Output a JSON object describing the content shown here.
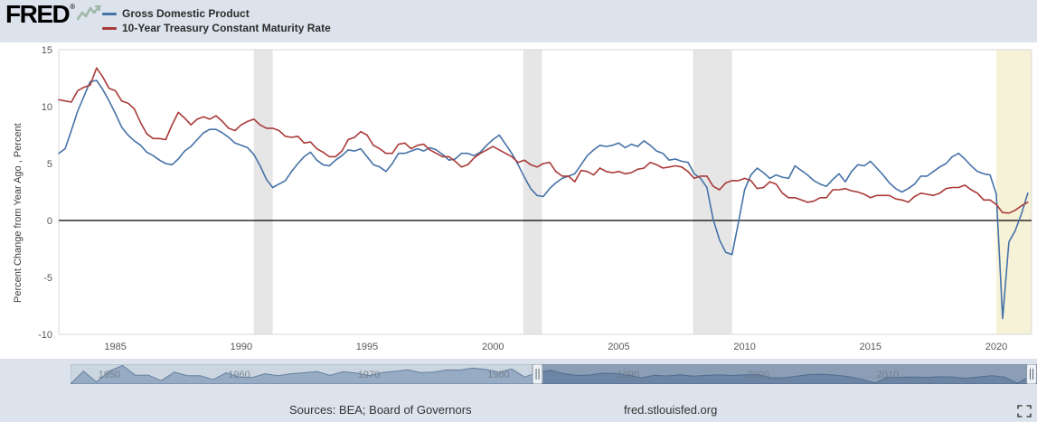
{
  "header": {
    "logo_text": "FRED",
    "logo_reg": "®",
    "legend": [
      {
        "label": "Gross Domestic Product",
        "color": "#4572a7"
      },
      {
        "label": "10-Year Treasury Constant Maturity Rate",
        "color": "#a93a38"
      }
    ]
  },
  "chart_data": {
    "type": "line",
    "title": "",
    "xlabel": "",
    "ylabel": "Percent Change from Year Ago , Percent",
    "x_range": [
      1982.75,
      2021.4
    ],
    "ylim": [
      -10,
      15
    ],
    "y_ticks": [
      15,
      10,
      5,
      0,
      -5,
      -10
    ],
    "x_ticks": [
      1985,
      1990,
      1995,
      2000,
      2005,
      2010,
      2015,
      2020
    ],
    "zero_line": 0,
    "grid": false,
    "legend_position": "top-left",
    "recession_color": "#e6e6e6",
    "recession_bands": [
      [
        1990.5,
        1991.25
      ],
      [
        2001.2,
        2001.95
      ],
      [
        2007.95,
        2009.5
      ]
    ],
    "highlight_band": [
      2020.0,
      2021.4
    ],
    "highlight_color": "#f6f2d8",
    "series": [
      {
        "name": "Gross Domestic Product",
        "color": "#4572a7",
        "x_start": 1982.75,
        "x_step": 0.25,
        "values": [
          5.9,
          6.3,
          7.9,
          9.6,
          10.9,
          12.2,
          12.3,
          11.5,
          10.5,
          9.4,
          8.2,
          7.5,
          7.0,
          6.6,
          6.0,
          5.7,
          5.3,
          5.0,
          4.9,
          5.4,
          6.1,
          6.5,
          7.1,
          7.7,
          8.0,
          8.0,
          7.7,
          7.3,
          6.8,
          6.6,
          6.4,
          5.8,
          4.8,
          3.6,
          2.9,
          3.2,
          3.5,
          4.3,
          5.0,
          5.6,
          6.0,
          5.3,
          4.9,
          4.8,
          5.3,
          5.7,
          6.2,
          6.1,
          6.3,
          5.6,
          4.9,
          4.7,
          4.3,
          5.0,
          5.9,
          5.9,
          6.1,
          6.3,
          6.1,
          6.4,
          6.2,
          5.8,
          5.3,
          5.4,
          5.9,
          5.9,
          5.7,
          6.0,
          6.6,
          7.1,
          7.5,
          6.7,
          5.9,
          4.9,
          3.8,
          2.8,
          2.2,
          2.1,
          2.8,
          3.3,
          3.7,
          3.9,
          4.1,
          4.9,
          5.7,
          6.2,
          6.6,
          6.5,
          6.6,
          6.8,
          6.4,
          6.7,
          6.5,
          7.0,
          6.6,
          6.1,
          5.9,
          5.3,
          5.4,
          5.2,
          5.1,
          4.1,
          3.7,
          2.9,
          0.1,
          -1.7,
          -2.8,
          -3.0,
          -0.2,
          2.7,
          4.0,
          4.6,
          4.2,
          3.7,
          4.0,
          3.8,
          3.7,
          4.8,
          4.4,
          4.0,
          3.5,
          3.2,
          3.0,
          3.6,
          4.1,
          3.4,
          4.3,
          4.9,
          4.8,
          5.2,
          4.6,
          4.0,
          3.3,
          2.8,
          2.5,
          2.8,
          3.2,
          3.9,
          3.9,
          4.3,
          4.7,
          5.0,
          5.6,
          5.9,
          5.4,
          4.8,
          4.3,
          4.1,
          4.0,
          2.3,
          -8.6,
          -1.9,
          -0.9,
          0.6,
          2.4
        ]
      },
      {
        "name": "10-Year Treasury Constant Maturity Rate",
        "color": "#a93a38",
        "x_start": 1982.75,
        "x_step": 0.25,
        "values": [
          10.6,
          10.5,
          10.4,
          11.4,
          11.7,
          11.9,
          13.4,
          12.6,
          11.6,
          11.4,
          10.5,
          10.3,
          9.8,
          8.6,
          7.6,
          7.2,
          7.2,
          7.1,
          8.4,
          9.5,
          9.0,
          8.4,
          8.9,
          9.1,
          8.9,
          9.2,
          8.7,
          8.1,
          7.9,
          8.4,
          8.7,
          8.9,
          8.4,
          8.1,
          8.1,
          7.9,
          7.4,
          7.3,
          7.4,
          6.8,
          6.9,
          6.3,
          6.0,
          5.6,
          5.6,
          6.1,
          7.1,
          7.3,
          7.8,
          7.5,
          6.6,
          6.3,
          5.9,
          5.9,
          6.7,
          6.8,
          6.3,
          6.6,
          6.7,
          6.2,
          5.9,
          5.6,
          5.6,
          5.2,
          4.7,
          4.9,
          5.5,
          5.9,
          6.2,
          6.5,
          6.2,
          5.9,
          5.6,
          5.1,
          5.3,
          4.9,
          4.7,
          5.0,
          5.1,
          4.3,
          3.9,
          3.9,
          3.4,
          4.4,
          4.3,
          4.0,
          4.6,
          4.3,
          4.2,
          4.3,
          4.1,
          4.2,
          4.5,
          4.6,
          5.1,
          4.9,
          4.6,
          4.7,
          4.8,
          4.7,
          4.3,
          3.7,
          3.9,
          3.9,
          3.0,
          2.7,
          3.3,
          3.5,
          3.5,
          3.7,
          3.5,
          2.8,
          2.9,
          3.4,
          3.2,
          2.4,
          2.0,
          2.0,
          1.8,
          1.6,
          1.7,
          2.0,
          2.0,
          2.7,
          2.7,
          2.8,
          2.6,
          2.5,
          2.3,
          2.0,
          2.2,
          2.2,
          2.2,
          1.9,
          1.8,
          1.6,
          2.1,
          2.4,
          2.3,
          2.2,
          2.4,
          2.8,
          2.9,
          2.9,
          3.1,
          2.7,
          2.4,
          1.8,
          1.8,
          1.4,
          0.7,
          0.65,
          0.9,
          1.3,
          1.6
        ]
      }
    ]
  },
  "slider": {
    "x_range": [
      1947,
      2021.5
    ],
    "labels": [
      1950,
      1960,
      1970,
      1980,
      1990,
      2000,
      2010
    ],
    "selection": [
      1983,
      2021.5
    ],
    "area": {
      "x_start": 1948,
      "x_step": 1,
      "values": [
        10,
        -1,
        10,
        15.7,
        5.9,
        6.0,
        0.4,
        9.0,
        5.5,
        5.5,
        1.5,
        8.4,
        4.0,
        3.6,
        7.4,
        5.5,
        7.4,
        8.4,
        9.6,
        5.7,
        9.4,
        8.2,
        5.5,
        8.5,
        9.8,
        11.4,
        8.5,
        9.0,
        11.2,
        11.1,
        13.0,
        11.7,
        8.8,
        12.2,
        4.1,
        8.6,
        11.0,
        7.6,
        5.6,
        6.1,
        7.9,
        7.7,
        5.8,
        3.3,
        5.9,
        5.2,
        6.3,
        4.9,
        5.7,
        6.3,
        5.6,
        6.3,
        6.5,
        3.3,
        3.3,
        4.9,
        6.6,
        6.7,
        5.8,
        4.5,
        1.7,
        -2.0,
        3.8,
        3.7,
        4.2,
        3.6,
        4.4,
        4.0,
        2.7,
        4.2,
        5.4,
        4.1,
        -2.2,
        5.0
      ]
    }
  },
  "footer": {
    "sources": "Sources: BEA; Board of Governors",
    "site": "fred.stlouisfed.org"
  }
}
